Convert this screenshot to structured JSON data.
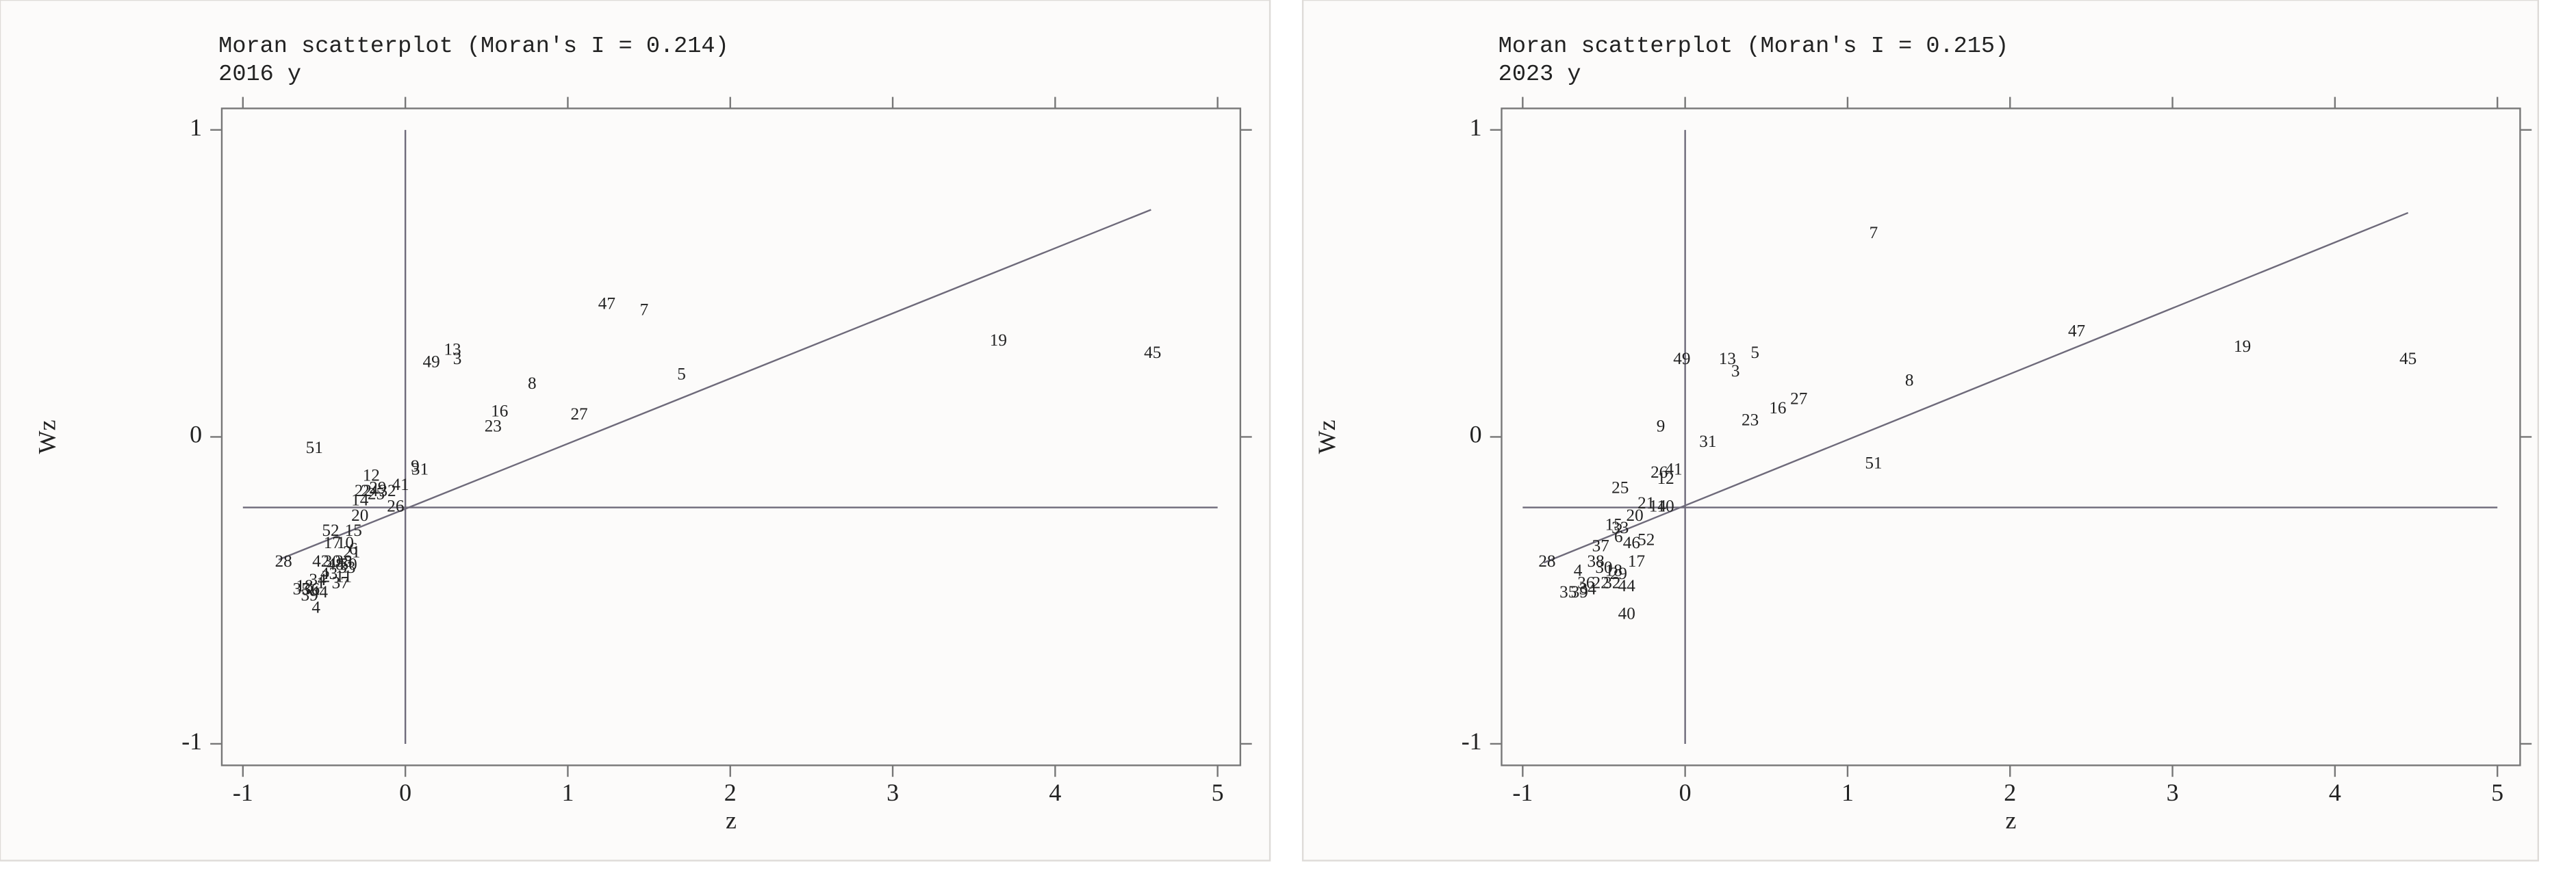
{
  "chart_data": [
    {
      "type": "scatter",
      "title": "Moran scatterplot (Moran's I = 0.214)",
      "subtitle": "2016 y",
      "x_label": "z",
      "y_label": "Wz",
      "xlim": [
        -1.13,
        5.14
      ],
      "ylim": [
        -1.07,
        1.07
      ],
      "xticks": [
        -1,
        0,
        1,
        2,
        3,
        4,
        5
      ],
      "yticks": [
        -1,
        0,
        1
      ],
      "color": "#6e6a7a",
      "reference_lines": {
        "x": 0,
        "y": -0.23
      },
      "fit_line": {
        "x": [
          -0.78,
          4.59
        ],
        "y": [
          -0.4,
          0.74
        ]
      },
      "point_labels": [
        "51",
        "13",
        "3",
        "49",
        "47",
        "7",
        "8",
        "5",
        "16",
        "23",
        "27",
        "19",
        "45",
        "9",
        "31",
        "12",
        "29",
        "22",
        "41",
        "32",
        "26",
        "14",
        "20",
        "52",
        "17",
        "10",
        "6",
        "42",
        "30",
        "38",
        "33",
        "43",
        "28",
        "11",
        "15",
        "21",
        "34",
        "18",
        "35",
        "36",
        "44",
        "39",
        "4",
        "1",
        "2",
        "24",
        "25",
        "37",
        "48",
        "50"
      ],
      "x": [
        -0.56,
        0.29,
        0.32,
        0.16,
        1.24,
        1.47,
        0.78,
        1.7,
        0.58,
        0.54,
        1.07,
        3.65,
        4.6,
        0.06,
        0.09,
        -0.21,
        -0.17,
        -0.26,
        -0.03,
        -0.11,
        -0.06,
        -0.28,
        -0.28,
        -0.46,
        -0.45,
        -0.37,
        -0.32,
        -0.52,
        -0.45,
        -0.38,
        -0.36,
        -0.47,
        -0.75,
        -0.38,
        -0.32,
        -0.33,
        -0.54,
        -0.62,
        -0.64,
        -0.58,
        -0.53,
        -0.59,
        -0.55,
        -0.52,
        -0.49,
        -0.22,
        -0.18,
        -0.4,
        -0.43,
        -0.35
      ],
      "values": [
        -0.04,
        0.28,
        0.25,
        0.24,
        0.43,
        0.41,
        0.17,
        0.2,
        0.08,
        0.03,
        0.07,
        0.31,
        0.27,
        -0.1,
        -0.11,
        -0.13,
        -0.17,
        -0.18,
        -0.16,
        -0.18,
        -0.23,
        -0.21,
        -0.26,
        -0.31,
        -0.35,
        -0.35,
        -0.37,
        -0.41,
        -0.41,
        -0.41,
        -0.43,
        -0.45,
        -0.41,
        -0.46,
        -0.31,
        -0.38,
        -0.47,
        -0.49,
        -0.5,
        -0.5,
        -0.51,
        -0.52,
        -0.56,
        -0.48,
        -0.46,
        -0.18,
        -0.19,
        -0.48,
        -0.42,
        -0.42
      ]
    },
    {
      "type": "scatter",
      "title": "Moran scatterplot (Moran's I = 0.215)",
      "subtitle": "2023 y",
      "x_label": "z",
      "y_label": "Wz",
      "xlim": [
        -1.13,
        5.14
      ],
      "ylim": [
        -1.07,
        1.07
      ],
      "xticks": [
        -1,
        0,
        1,
        2,
        3,
        4,
        5
      ],
      "yticks": [
        -1,
        0,
        1
      ],
      "color": "#6e6a7a",
      "reference_lines": {
        "x": 0,
        "y": -0.23
      },
      "fit_line": {
        "x": [
          -0.87,
          4.45
        ],
        "y": [
          -0.41,
          0.73
        ]
      },
      "point_labels": [
        "7",
        "47",
        "19",
        "45",
        "8",
        "49",
        "13",
        "3",
        "5",
        "27",
        "16",
        "23",
        "9",
        "31",
        "51",
        "25",
        "26",
        "41",
        "12",
        "21",
        "14",
        "10",
        "20",
        "15",
        "33",
        "6",
        "46",
        "52",
        "37",
        "17",
        "38",
        "30",
        "18",
        "29",
        "28",
        "4",
        "22",
        "32",
        "44",
        "36",
        "35",
        "39",
        "34",
        "40"
      ],
      "x": [
        1.16,
        2.41,
        3.43,
        4.45,
        1.38,
        -0.02,
        0.26,
        0.31,
        0.43,
        0.7,
        0.57,
        0.4,
        -0.15,
        0.14,
        1.16,
        -0.4,
        -0.16,
        -0.07,
        -0.12,
        -0.24,
        -0.17,
        -0.12,
        -0.31,
        -0.44,
        -0.4,
        -0.41,
        -0.33,
        -0.24,
        -0.52,
        -0.3,
        -0.55,
        -0.5,
        -0.44,
        -0.41,
        -0.85,
        -0.66,
        -0.52,
        -0.45,
        -0.36,
        -0.61,
        -0.72,
        -0.65,
        -0.6,
        -0.36
      ],
      "values": [
        0.66,
        0.34,
        0.29,
        0.25,
        0.18,
        0.25,
        0.25,
        0.21,
        0.27,
        0.12,
        0.09,
        0.05,
        0.03,
        -0.02,
        -0.09,
        -0.17,
        -0.12,
        -0.11,
        -0.14,
        -0.22,
        -0.23,
        -0.23,
        -0.26,
        -0.29,
        -0.3,
        -0.33,
        -0.35,
        -0.34,
        -0.36,
        -0.41,
        -0.41,
        -0.43,
        -0.44,
        -0.45,
        -0.41,
        -0.44,
        -0.48,
        -0.48,
        -0.49,
        -0.48,
        -0.51,
        -0.51,
        -0.5,
        -0.58
      ]
    }
  ]
}
